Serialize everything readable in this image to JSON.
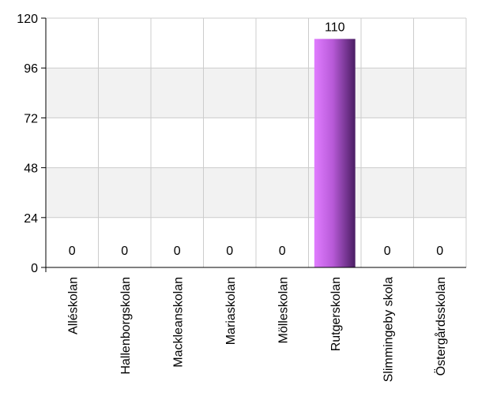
{
  "chart_data": {
    "type": "bar",
    "categories": [
      "Alléskolan",
      "Hallenborgskolan",
      "Mackleanskolan",
      "Mariaskolan",
      "Mölleskolan",
      "Rutgerskolan",
      "Slimmingeby skola",
      "Östergårdsskolan"
    ],
    "values": [
      0,
      0,
      0,
      0,
      0,
      110,
      0,
      0
    ],
    "data_labels": [
      "0",
      "0",
      "0",
      "0",
      "0",
      "110",
      "0",
      "0"
    ],
    "title": "",
    "xlabel": "",
    "ylabel": "",
    "ylim": [
      0,
      120
    ],
    "yticks": [
      0,
      24,
      48,
      72,
      96,
      120
    ],
    "ytick_labels": [
      "0",
      "24",
      "48",
      "72",
      "96",
      "120"
    ],
    "grid": true,
    "legend": "none",
    "colors": {
      "bar_light": "#e07cff",
      "bar_mid": "#b85ad8",
      "bar_dark": "#4a1d63",
      "band": "#f2f2f2",
      "grid": "#cccccc",
      "axis": "#000000"
    }
  }
}
